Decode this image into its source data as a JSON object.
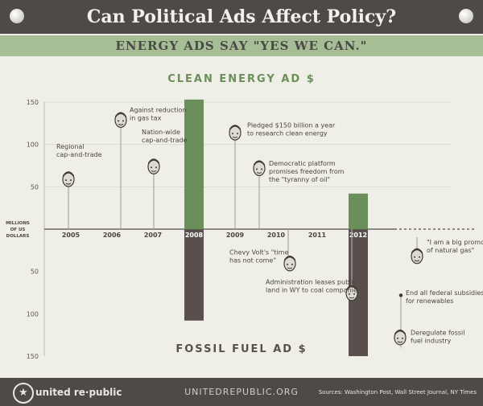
{
  "title": "Can Political Ads Affect Policy?",
  "subtitle": "ENERGY ADS SAY \"YES WE CAN.\"",
  "footer": {
    "brand": "united re·public",
    "site": "UNITEDREPUBLIC.ORG",
    "sources": "Sources: Washington Post, Wall Street Journal, NY Times"
  },
  "colors": {
    "clean": "#6a8f5a",
    "fossil": "#59504d",
    "background": "#efefe7",
    "header": "#4f4a47"
  },
  "chart_data": {
    "type": "bar",
    "clean_label": "CLEAN ENERGY AD $",
    "fossil_label": "FOSSIL FUEL AD $",
    "unit_label": [
      "MILLIONS",
      "OF US",
      "DOLLARS"
    ],
    "categories": [
      "2005",
      "2006",
      "2007",
      "2008",
      "2009",
      "2010",
      "2011",
      "2012"
    ],
    "y_ticks_up": [
      "150",
      "100",
      "50"
    ],
    "y_ticks_down": [
      "50",
      "100",
      "150"
    ],
    "ylim": [
      -150,
      150
    ],
    "series": [
      {
        "key": "clean",
        "values": [
          0,
          0,
          0,
          153,
          0,
          0,
          0,
          42
        ]
      },
      {
        "key": "fossil",
        "values": [
          0,
          0,
          0,
          108,
          0,
          0,
          0,
          150
        ]
      }
    ],
    "annotations": [
      {
        "text": [
          "Regional",
          "cap-and-trade"
        ],
        "year": "2005",
        "side": "clean"
      },
      {
        "text": [
          "Against reduction",
          "in gas tax"
        ],
        "year": "2006",
        "side": "clean"
      },
      {
        "text": [
          "Nation-wide",
          "cap-and-trade"
        ],
        "year": "2007",
        "side": "clean"
      },
      {
        "text": [
          "Pledged $150 billion a year",
          "to research clean energy"
        ],
        "year": "2009",
        "side": "clean"
      },
      {
        "text": [
          "Democratic platform",
          "promises freedom from",
          "the \"tyranny of oil\""
        ],
        "year": "2009",
        "side": "clean"
      },
      {
        "text": [
          "Chevy Volt's \"time",
          "has not come\""
        ],
        "year": "2010",
        "side": "fossil"
      },
      {
        "text": [
          "Administration leases public",
          "land in WY to coal companies"
        ],
        "year": "2011",
        "side": "fossil"
      },
      {
        "text": [
          "End all federal subsidies",
          "for renewables"
        ],
        "year": "2012",
        "side": "fossil"
      },
      {
        "text": [
          "Deregulate fossil",
          "fuel industry"
        ],
        "year": "2012",
        "side": "fossil"
      },
      {
        "text": [
          "\"I am a big promoter",
          "of natural gas\""
        ],
        "year": "2012",
        "side": "fossil"
      }
    ]
  }
}
